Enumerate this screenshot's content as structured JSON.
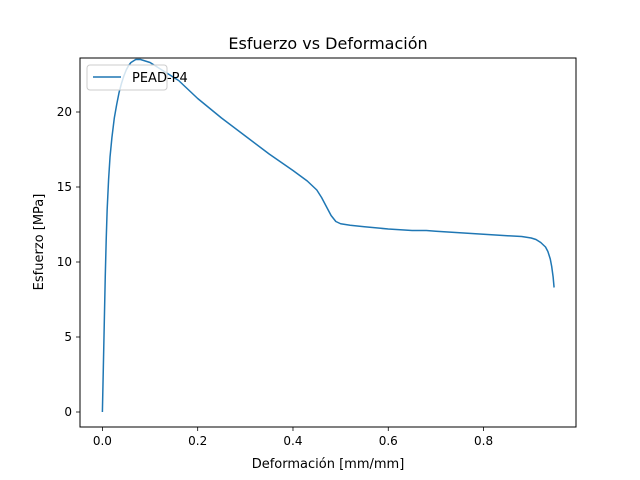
{
  "chart_data": {
    "type": "line",
    "title": "Esfuerzo vs Deformación",
    "xlabel": "Deformación [mm/mm]",
    "ylabel": "Esfuerzo [MPa]",
    "xlim": [
      -0.047,
      0.994
    ],
    "ylim": [
      -1.0,
      23.6
    ],
    "xticks": [
      0.0,
      0.2,
      0.4,
      0.6,
      0.8
    ],
    "xtick_labels": [
      "0.0",
      "0.2",
      "0.4",
      "0.6",
      "0.8"
    ],
    "yticks": [
      0,
      5,
      10,
      15,
      20
    ],
    "ytick_labels": [
      "0",
      "5",
      "10",
      "15",
      "20"
    ],
    "grid": false,
    "legend_position": "top-left",
    "series": [
      {
        "name": "PEAD-P4",
        "color": "#1f77b4",
        "x": [
          0.0,
          0.002,
          0.004,
          0.006,
          0.008,
          0.01,
          0.013,
          0.016,
          0.02,
          0.025,
          0.03,
          0.035,
          0.04,
          0.045,
          0.05,
          0.055,
          0.06,
          0.065,
          0.07,
          0.08,
          0.09,
          0.1,
          0.11,
          0.12,
          0.13,
          0.14,
          0.15,
          0.16,
          0.17,
          0.18,
          0.2,
          0.25,
          0.3,
          0.35,
          0.4,
          0.43,
          0.45,
          0.46,
          0.47,
          0.475,
          0.48,
          0.485,
          0.49,
          0.5,
          0.52,
          0.55,
          0.6,
          0.65,
          0.68,
          0.7,
          0.75,
          0.8,
          0.85,
          0.88,
          0.9,
          0.91,
          0.92,
          0.93,
          0.935,
          0.94,
          0.943,
          0.946,
          0.948
        ],
        "y": [
          0.0,
          3.0,
          6.0,
          9.0,
          11.5,
          13.5,
          15.5,
          17.0,
          18.3,
          19.6,
          20.5,
          21.3,
          21.9,
          22.4,
          22.8,
          23.1,
          23.3,
          23.4,
          23.5,
          23.5,
          23.4,
          23.3,
          23.1,
          22.9,
          22.7,
          22.5,
          22.3,
          22.1,
          21.8,
          21.5,
          20.9,
          19.6,
          18.4,
          17.2,
          16.1,
          15.4,
          14.8,
          14.3,
          13.7,
          13.4,
          13.1,
          12.9,
          12.7,
          12.55,
          12.45,
          12.35,
          12.2,
          12.1,
          12.1,
          12.05,
          11.95,
          11.85,
          11.75,
          11.7,
          11.6,
          11.5,
          11.3,
          11.0,
          10.7,
          10.2,
          9.7,
          9.0,
          8.3
        ]
      }
    ]
  }
}
